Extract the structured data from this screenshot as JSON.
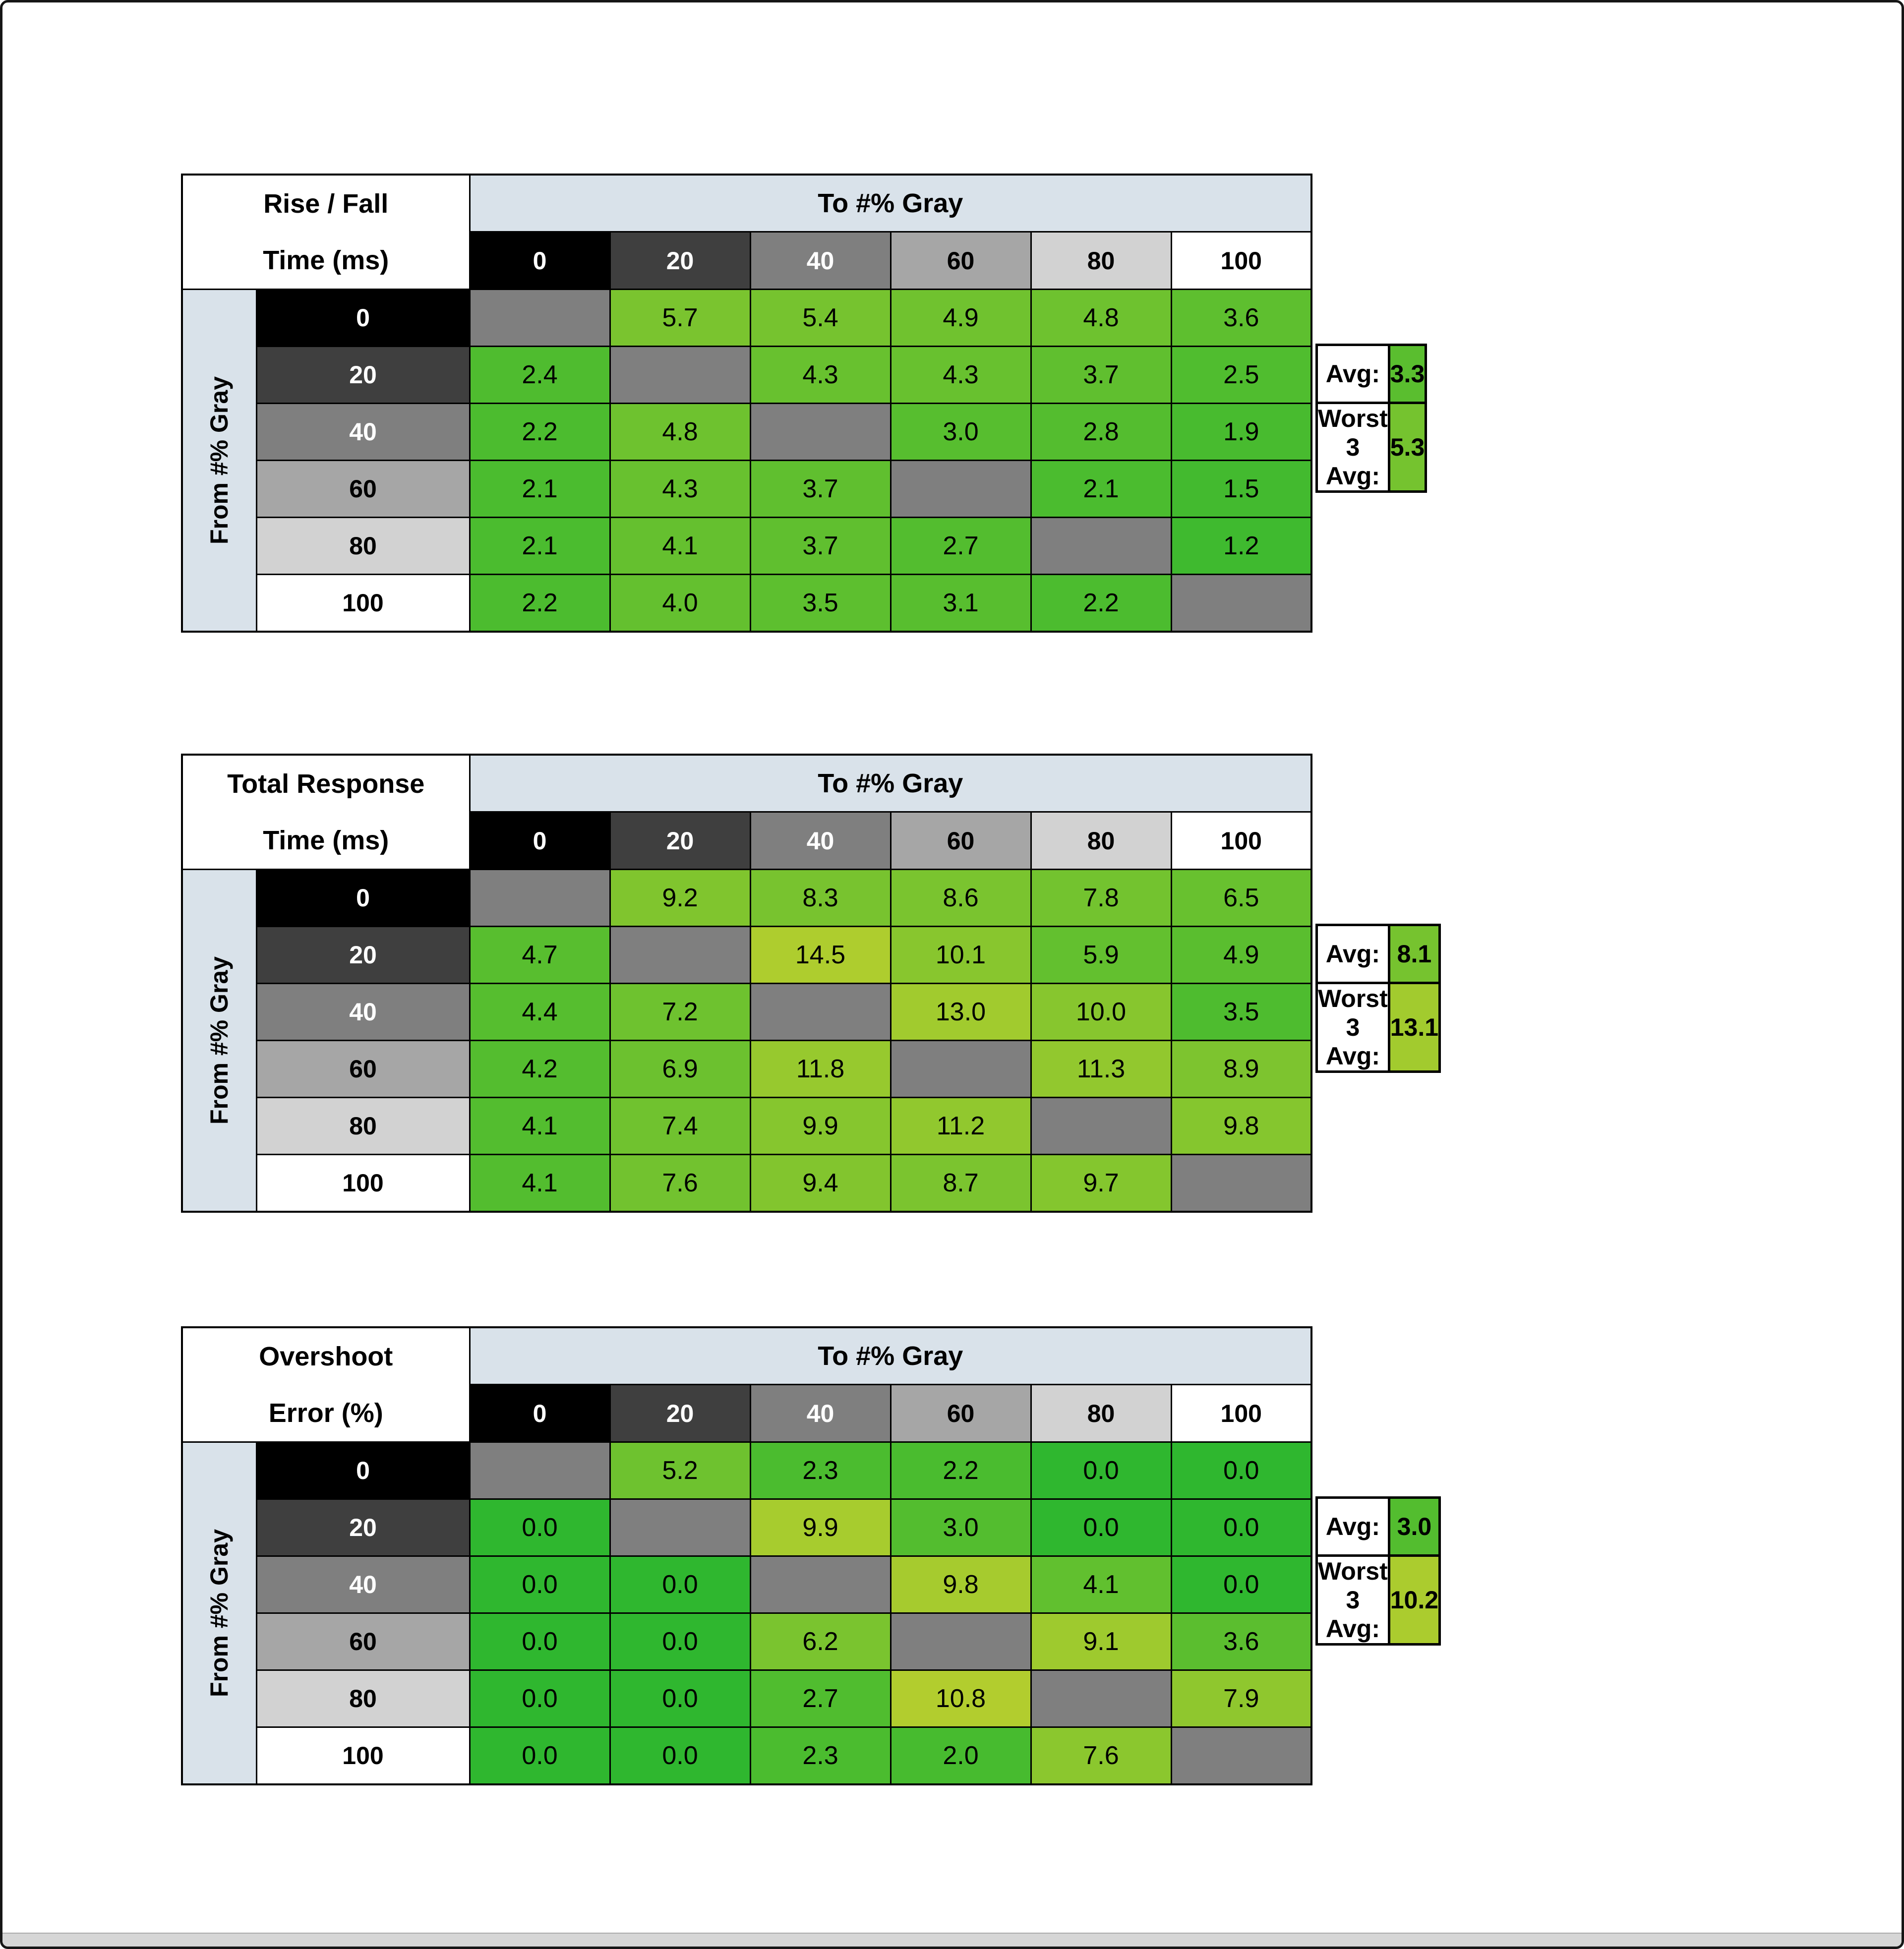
{
  "page": {
    "background": "#ffffff",
    "border_color": "#161616"
  },
  "colors": {
    "header_band": "#d9e2ea",
    "diagonal_cell": "#7f7f7f",
    "grid_border": "#000000",
    "scale_green": "#2fb72f",
    "scale_yellow": "#cdd22e",
    "gray_levels": [
      {
        "bg": "#000000",
        "fg": "#ffffff"
      },
      {
        "bg": "#3f3f3f",
        "fg": "#ffffff"
      },
      {
        "bg": "#7f7f7f",
        "fg": "#ffffff"
      },
      {
        "bg": "#a6a6a6",
        "fg": "#000000"
      },
      {
        "bg": "#d2d2d2",
        "fg": "#000000"
      },
      {
        "bg": "#ffffff",
        "fg": "#000000"
      }
    ]
  },
  "chart_data": [
    {
      "type": "heatmap",
      "title": "Rise / Fall Time (ms)",
      "title_line1": "Rise / Fall",
      "title_line2": "Time (ms)",
      "col_axis_label": "To #% Gray",
      "row_axis_label": "From #% Gray",
      "levels": [
        "0",
        "20",
        "40",
        "60",
        "80",
        "100"
      ],
      "rows": [
        [
          null,
          5.7,
          5.4,
          4.9,
          4.8,
          3.6
        ],
        [
          2.4,
          null,
          4.3,
          4.3,
          3.7,
          2.5
        ],
        [
          2.2,
          4.8,
          null,
          3.0,
          2.8,
          1.9
        ],
        [
          2.1,
          4.3,
          3.7,
          null,
          2.1,
          1.5
        ],
        [
          2.1,
          4.1,
          3.7,
          2.7,
          null,
          1.2
        ],
        [
          2.2,
          4.0,
          3.5,
          3.1,
          2.2,
          null
        ]
      ],
      "color_scale_max": 12,
      "summary": {
        "avg_label": "Avg:",
        "avg": "3.3",
        "worst_label": "Worst 3 Avg:",
        "worst": "5.3"
      }
    },
    {
      "type": "heatmap",
      "title": "Total Response Time (ms)",
      "title_line1": "Total Response",
      "title_line2": "Time (ms)",
      "col_axis_label": "To #% Gray",
      "row_axis_label": "From #% Gray",
      "levels": [
        "0",
        "20",
        "40",
        "60",
        "80",
        "100"
      ],
      "rows": [
        [
          null,
          9.2,
          8.3,
          8.6,
          7.8,
          6.5
        ],
        [
          4.7,
          null,
          14.5,
          10.1,
          5.9,
          4.9
        ],
        [
          4.4,
          7.2,
          null,
          13.0,
          10.0,
          3.5
        ],
        [
          4.2,
          6.9,
          11.8,
          null,
          11.3,
          8.9
        ],
        [
          4.1,
          7.4,
          9.9,
          11.2,
          null,
          9.8
        ],
        [
          4.1,
          7.6,
          9.4,
          8.7,
          9.7,
          null
        ]
      ],
      "color_scale_max": 18,
      "summary": {
        "avg_label": "Avg:",
        "avg": "8.1",
        "worst_label": "Worst 3 Avg:",
        "worst": "13.1"
      }
    },
    {
      "type": "heatmap",
      "title": "Overshoot Error (%)",
      "title_line1": "Overshoot",
      "title_line2": "Error (%)",
      "col_axis_label": "To #% Gray",
      "row_axis_label": "From #% Gray",
      "levels": [
        "0",
        "20",
        "40",
        "60",
        "80",
        "100"
      ],
      "rows": [
        [
          null,
          5.2,
          2.3,
          2.2,
          0.0,
          0.0
        ],
        [
          0.0,
          null,
          9.9,
          3.0,
          0.0,
          0.0
        ],
        [
          0.0,
          0.0,
          null,
          9.8,
          4.1,
          0.0
        ],
        [
          0.0,
          0.0,
          6.2,
          null,
          9.1,
          3.6
        ],
        [
          0.0,
          0.0,
          2.7,
          10.8,
          null,
          7.9
        ],
        [
          0.0,
          0.0,
          2.3,
          2.0,
          7.6,
          null
        ]
      ],
      "color_scale_max": 13,
      "summary": {
        "avg_label": "Avg:",
        "avg": "3.0",
        "worst_label": "Worst 3 Avg:",
        "worst": "10.2"
      }
    }
  ]
}
